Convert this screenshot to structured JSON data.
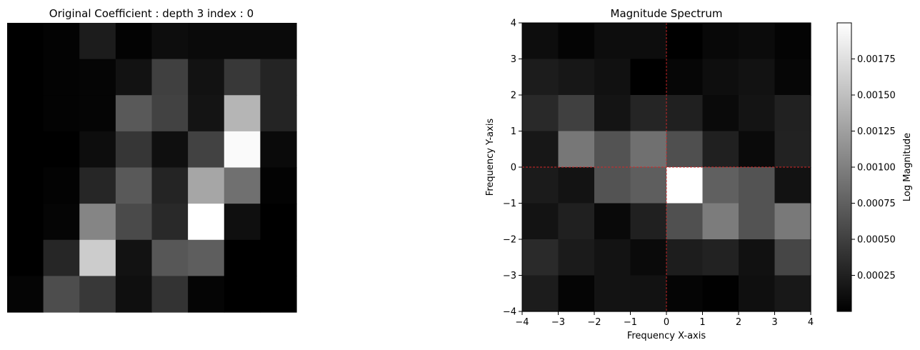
{
  "chart_data": [
    {
      "type": "heatmap",
      "title": "Original Coefficient : depth 3 index : 0",
      "axes_visible": false,
      "colormap": "gray",
      "rows": 8,
      "cols": 8,
      "values": [
        [
          0.0,
          0.01,
          0.11,
          0.01,
          0.05,
          0.04,
          0.04,
          0.04
        ],
        [
          0.0,
          0.01,
          0.02,
          0.07,
          0.25,
          0.07,
          0.22,
          0.14
        ],
        [
          0.0,
          0.01,
          0.02,
          0.35,
          0.26,
          0.08,
          0.71,
          0.14
        ],
        [
          0.0,
          0.0,
          0.05,
          0.21,
          0.06,
          0.26,
          0.98,
          0.04
        ],
        [
          0.0,
          0.01,
          0.15,
          0.35,
          0.14,
          0.65,
          0.44,
          0.01
        ],
        [
          0.0,
          0.02,
          0.52,
          0.29,
          0.16,
          1.0,
          0.06,
          0.0
        ],
        [
          0.0,
          0.15,
          0.8,
          0.07,
          0.34,
          0.37,
          0.0,
          0.0
        ],
        [
          0.02,
          0.3,
          0.22,
          0.06,
          0.2,
          0.02,
          0.0,
          0.0
        ]
      ]
    },
    {
      "type": "heatmap",
      "title": "Magnitude Spectrum",
      "xlabel": "Frequency X-axis",
      "ylabel": "Frequency Y-axis",
      "xlim": [
        -4,
        4
      ],
      "ylim": [
        -4,
        4
      ],
      "x_ticks": [
        -4,
        -3,
        -2,
        -1,
        0,
        1,
        2,
        3,
        4
      ],
      "y_ticks": [
        -4,
        -3,
        -2,
        -1,
        0,
        1,
        2,
        3,
        4
      ],
      "x_tick_labels": [
        "−4",
        "−3",
        "−2",
        "−1",
        "0",
        "1",
        "2",
        "3",
        "4"
      ],
      "y_tick_labels": [
        "−4",
        "−3",
        "−2",
        "−1",
        "0",
        "1",
        "2",
        "3",
        "4"
      ],
      "colormap": "gray",
      "crosshair_color": "#d62728",
      "colorbar": {
        "label": "Log Magnitude",
        "min": 0.0,
        "max": 0.002,
        "ticks": [
          0.00025,
          0.0005,
          0.00075,
          0.001,
          0.00125,
          0.0015,
          0.00175
        ],
        "tick_labels": [
          "0.00025",
          "0.00050",
          "0.00075",
          "0.00100",
          "0.00125",
          "0.00150",
          "0.00175"
        ]
      },
      "values": [
        [
          0.0001,
          3e-05,
          0.0001,
          0.0001,
          0.0,
          6e-05,
          9e-05,
          3e-05
        ],
        [
          0.00022,
          0.00018,
          0.00013,
          0.0,
          5e-05,
          0.00011,
          0.00014,
          5e-05
        ],
        [
          0.00032,
          0.0005,
          0.00016,
          0.00029,
          0.00025,
          8e-05,
          0.00016,
          0.00026
        ],
        [
          0.00018,
          0.00093,
          0.00065,
          0.00088,
          0.00062,
          0.00025,
          8e-05,
          0.00027
        ],
        [
          0.00021,
          0.00015,
          0.00065,
          0.00074,
          0.002,
          0.00075,
          0.00065,
          0.00014
        ],
        [
          0.00015,
          0.00025,
          7e-05,
          0.00025,
          0.00063,
          0.00097,
          0.00065,
          0.00095
        ],
        [
          0.00033,
          0.00021,
          0.00015,
          8e-05,
          0.00023,
          0.00027,
          0.00013,
          0.00055
        ],
        [
          0.00022,
          4e-05,
          0.00015,
          0.00014,
          4e-05,
          1e-05,
          0.00012,
          0.00019
        ]
      ]
    }
  ]
}
